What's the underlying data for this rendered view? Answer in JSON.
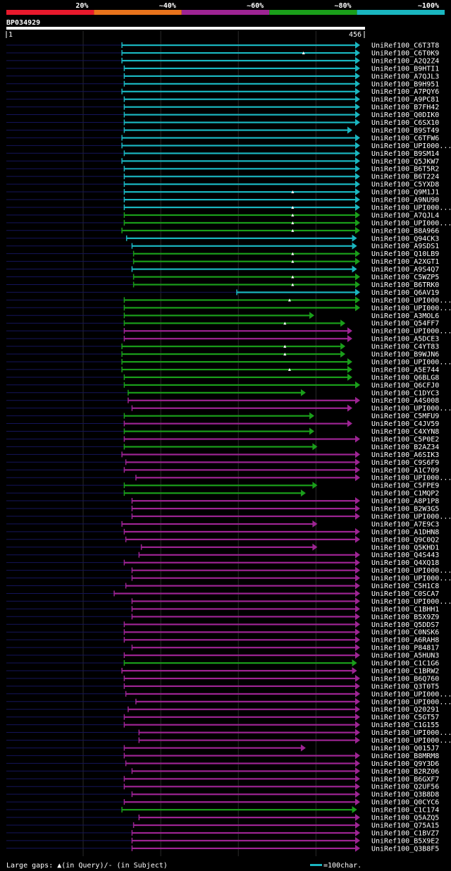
{
  "chart_data": {
    "type": "alignment",
    "title": "BP034929",
    "query_length": 456,
    "axis_start_label": "1",
    "axis_end_label": "456",
    "identity_bins": [
      {
        "label": "20%",
        "color": "#e8192c"
      },
      {
        "label": "~40%",
        "color": "#e8731c"
      },
      {
        "label": "~60%",
        "color": "#9d2493"
      },
      {
        "label": "~80%",
        "color": "#1a9e1a"
      },
      {
        "label": "~100%",
        "color": "#1ab6c0"
      }
    ],
    "hits": [
      {
        "name": "UniRef100_C6T3T8",
        "start": 150,
        "end": 456,
        "bin": 4,
        "gaps": []
      },
      {
        "name": "UniRef100_C6T0K9",
        "start": 150,
        "end": 456,
        "bin": 4,
        "gaps": [
          384
        ]
      },
      {
        "name": "UniRef100_A2Q2Z4",
        "start": 150,
        "end": 456,
        "bin": 4,
        "gaps": []
      },
      {
        "name": "UniRef100_B9HTI1",
        "start": 153,
        "end": 456,
        "bin": 4,
        "gaps": []
      },
      {
        "name": "UniRef100_A7QJL3",
        "start": 153,
        "end": 456,
        "bin": 4,
        "gaps": []
      },
      {
        "name": "UniRef100_B9H951",
        "start": 153,
        "end": 456,
        "bin": 4,
        "gaps": []
      },
      {
        "name": "UniRef100_A7PQY6",
        "start": 150,
        "end": 456,
        "bin": 4,
        "gaps": []
      },
      {
        "name": "UniRef100_A9PC81",
        "start": 153,
        "end": 456,
        "bin": 4,
        "gaps": []
      },
      {
        "name": "UniRef100_B7FH42",
        "start": 153,
        "end": 456,
        "bin": 4,
        "gaps": []
      },
      {
        "name": "UniRef100_Q0DIK0",
        "start": 153,
        "end": 456,
        "bin": 4,
        "gaps": []
      },
      {
        "name": "UniRef100_C6SX10",
        "start": 153,
        "end": 456,
        "bin": 4,
        "gaps": []
      },
      {
        "name": "UniRef100_B9ST49",
        "start": 153,
        "end": 446,
        "bin": 4,
        "gaps": []
      },
      {
        "name": "UniRef100_C6TFW6",
        "start": 150,
        "end": 456,
        "bin": 4,
        "gaps": []
      },
      {
        "name": "UniRef100_UPI000...",
        "start": 150,
        "end": 456,
        "bin": 4,
        "gaps": []
      },
      {
        "name": "UniRef100_B9SM14",
        "start": 153,
        "end": 456,
        "bin": 4,
        "gaps": []
      },
      {
        "name": "UniRef100_Q5JKW7",
        "start": 150,
        "end": 456,
        "bin": 4,
        "gaps": []
      },
      {
        "name": "UniRef100_B6T5R2",
        "start": 153,
        "end": 456,
        "bin": 4,
        "gaps": []
      },
      {
        "name": "UniRef100_B6T224",
        "start": 153,
        "end": 456,
        "bin": 4,
        "gaps": []
      },
      {
        "name": "UniRef100_C5YXD8",
        "start": 153,
        "end": 456,
        "bin": 4,
        "gaps": []
      },
      {
        "name": "UniRef100_Q9M1J1",
        "start": 153,
        "end": 456,
        "bin": 4,
        "gaps": [
          370
        ]
      },
      {
        "name": "UniRef100_A9NU90",
        "start": 153,
        "end": 456,
        "bin": 4,
        "gaps": []
      },
      {
        "name": "UniRef100_UPI000...",
        "start": 153,
        "end": 456,
        "bin": 4,
        "gaps": [
          370
        ]
      },
      {
        "name": "UniRef100_A7QJL4",
        "start": 153,
        "end": 456,
        "bin": 3,
        "gaps": [
          370
        ]
      },
      {
        "name": "UniRef100_UPI000...",
        "start": 153,
        "end": 456,
        "bin": 3,
        "gaps": [
          370
        ]
      },
      {
        "name": "UniRef100_B8A966",
        "start": 150,
        "end": 456,
        "bin": 3,
        "gaps": [
          370
        ]
      },
      {
        "name": "UniRef100_Q94CK3",
        "start": 156,
        "end": 452,
        "bin": 4,
        "gaps": []
      },
      {
        "name": "UniRef100_A9SDS1",
        "start": 163,
        "end": 452,
        "bin": 4,
        "gaps": []
      },
      {
        "name": "UniRef100_Q10LB9",
        "start": 165,
        "end": 456,
        "bin": 3,
        "gaps": [
          370
        ]
      },
      {
        "name": "UniRef100_A2XGT1",
        "start": 165,
        "end": 456,
        "bin": 3,
        "gaps": [
          370
        ]
      },
      {
        "name": "UniRef100_A9S4Q7",
        "start": 163,
        "end": 452,
        "bin": 4,
        "gaps": []
      },
      {
        "name": "UniRef100_C5WZP5",
        "start": 165,
        "end": 456,
        "bin": 3,
        "gaps": [
          370
        ]
      },
      {
        "name": "UniRef100_B6TRK0",
        "start": 165,
        "end": 456,
        "bin": 3,
        "gaps": [
          370
        ]
      },
      {
        "name": "UniRef100_Q6AV19",
        "start": 298,
        "end": 456,
        "bin": 4,
        "gaps": []
      },
      {
        "name": "UniRef100_UPI000...",
        "start": 153,
        "end": 456,
        "bin": 3,
        "gaps": [
          366
        ]
      },
      {
        "name": "UniRef100_UPI000...",
        "start": 153,
        "end": 456,
        "bin": 3,
        "gaps": []
      },
      {
        "name": "UniRef100_A3MOL6",
        "start": 153,
        "end": 397,
        "bin": 3,
        "gaps": []
      },
      {
        "name": "UniRef100_Q54FF7",
        "start": 153,
        "end": 437,
        "bin": 3,
        "gaps": [
          360
        ]
      },
      {
        "name": "UniRef100_UPI000...",
        "start": 153,
        "end": 446,
        "bin": 2,
        "gaps": []
      },
      {
        "name": "UniRef100_A5DCE3",
        "start": 153,
        "end": 446,
        "bin": 2,
        "gaps": []
      },
      {
        "name": "UniRef100_C4YT83",
        "start": 150,
        "end": 437,
        "bin": 3,
        "gaps": [
          360
        ]
      },
      {
        "name": "UniRef100_B9WJN6",
        "start": 150,
        "end": 437,
        "bin": 3,
        "gaps": [
          360
        ]
      },
      {
        "name": "UniRef100_UPI000...",
        "start": 150,
        "end": 446,
        "bin": 3,
        "gaps": []
      },
      {
        "name": "UniRef100_A5E744",
        "start": 150,
        "end": 446,
        "bin": 3,
        "gaps": [
          366
        ]
      },
      {
        "name": "UniRef100_Q6BLG8",
        "start": 153,
        "end": 446,
        "bin": 3,
        "gaps": []
      },
      {
        "name": "UniRef100_Q6CFJ0",
        "start": 153,
        "end": 456,
        "bin": 3,
        "gaps": []
      },
      {
        "name": "UniRef100_C1DYC3",
        "start": 158,
        "end": 386,
        "bin": 3,
        "gaps": []
      },
      {
        "name": "UniRef100_A4S008",
        "start": 158,
        "end": 456,
        "bin": 2,
        "gaps": []
      },
      {
        "name": "UniRef100_UPI000...",
        "start": 163,
        "end": 446,
        "bin": 2,
        "gaps": []
      },
      {
        "name": "UniRef100_C5MFU9",
        "start": 153,
        "end": 397,
        "bin": 3,
        "gaps": []
      },
      {
        "name": "UniRef100_C4JV59",
        "start": 153,
        "end": 446,
        "bin": 2,
        "gaps": []
      },
      {
        "name": "UniRef100_C4XYN8",
        "start": 153,
        "end": 397,
        "bin": 3,
        "gaps": []
      },
      {
        "name": "UniRef100_C5P0E2",
        "start": 153,
        "end": 456,
        "bin": 2,
        "gaps": []
      },
      {
        "name": "UniRef100_B2AZ34",
        "start": 153,
        "end": 401,
        "bin": 3,
        "gaps": []
      },
      {
        "name": "UniRef100_A6SIK3",
        "start": 150,
        "end": 456,
        "bin": 2,
        "gaps": []
      },
      {
        "name": "UniRef100_C9S6F9",
        "start": 155,
        "end": 456,
        "bin": 2,
        "gaps": []
      },
      {
        "name": "UniRef100_A1C709",
        "start": 153,
        "end": 456,
        "bin": 2,
        "gaps": []
      },
      {
        "name": "UniRef100_UPI000...",
        "start": 168,
        "end": 456,
        "bin": 2,
        "gaps": []
      },
      {
        "name": "UniRef100_C5FPE9",
        "start": 153,
        "end": 401,
        "bin": 3,
        "gaps": []
      },
      {
        "name": "UniRef100_C1MQP2",
        "start": 153,
        "end": 386,
        "bin": 3,
        "gaps": []
      },
      {
        "name": "UniRef100_A8P1P8",
        "start": 163,
        "end": 456,
        "bin": 2,
        "gaps": []
      },
      {
        "name": "UniRef100_B2W3G5",
        "start": 163,
        "end": 456,
        "bin": 2,
        "gaps": []
      },
      {
        "name": "UniRef100_UPI000...",
        "start": 163,
        "end": 456,
        "bin": 2,
        "gaps": []
      },
      {
        "name": "UniRef100_A7E9C3",
        "start": 150,
        "end": 401,
        "bin": 2,
        "gaps": []
      },
      {
        "name": "UniRef100_A1DHN8",
        "start": 153,
        "end": 456,
        "bin": 2,
        "gaps": []
      },
      {
        "name": "UniRef100_Q9C0Q2",
        "start": 155,
        "end": 456,
        "bin": 2,
        "gaps": []
      },
      {
        "name": "UniRef100_Q5KHD1",
        "start": 175,
        "end": 401,
        "bin": 2,
        "gaps": []
      },
      {
        "name": "UniRef100_Q4S443",
        "start": 172,
        "end": 456,
        "bin": 2,
        "gaps": []
      },
      {
        "name": "UniRef100_Q4XQ18",
        "start": 153,
        "end": 456,
        "bin": 2,
        "gaps": []
      },
      {
        "name": "UniRef100_UPI000...",
        "start": 163,
        "end": 456,
        "bin": 2,
        "gaps": []
      },
      {
        "name": "UniRef100_UPI000...",
        "start": 163,
        "end": 456,
        "bin": 2,
        "gaps": []
      },
      {
        "name": "UniRef100_C5H1C8",
        "start": 155,
        "end": 456,
        "bin": 2,
        "gaps": []
      },
      {
        "name": "UniRef100_C0SCA7",
        "start": 140,
        "end": 456,
        "bin": 2,
        "gaps": []
      },
      {
        "name": "UniRef100_UPI000...",
        "start": 163,
        "end": 456,
        "bin": 2,
        "gaps": []
      },
      {
        "name": "UniRef100_C1BHH1",
        "start": 163,
        "end": 456,
        "bin": 2,
        "gaps": []
      },
      {
        "name": "UniRef100_B5X9Z9",
        "start": 163,
        "end": 456,
        "bin": 2,
        "gaps": []
      },
      {
        "name": "UniRef100_Q5DDS7",
        "start": 153,
        "end": 456,
        "bin": 2,
        "gaps": []
      },
      {
        "name": "UniRef100_C0NSK6",
        "start": 153,
        "end": 456,
        "bin": 2,
        "gaps": []
      },
      {
        "name": "UniRef100_A6RAH8",
        "start": 153,
        "end": 456,
        "bin": 2,
        "gaps": []
      },
      {
        "name": "UniRef100_P84817",
        "start": 163,
        "end": 456,
        "bin": 2,
        "gaps": []
      },
      {
        "name": "UniRef100_A5HUN3",
        "start": 153,
        "end": 456,
        "bin": 2,
        "gaps": []
      },
      {
        "name": "UniRef100_C1C1G6",
        "start": 153,
        "end": 452,
        "bin": 3,
        "gaps": []
      },
      {
        "name": "UniRef100_C1BRW2",
        "start": 150,
        "end": 452,
        "bin": 2,
        "gaps": []
      },
      {
        "name": "UniRef100_B6Q760",
        "start": 153,
        "end": 456,
        "bin": 2,
        "gaps": []
      },
      {
        "name": "UniRef100_Q3T0T5",
        "start": 153,
        "end": 456,
        "bin": 2,
        "gaps": []
      },
      {
        "name": "UniRef100_UPI000...",
        "start": 155,
        "end": 456,
        "bin": 2,
        "gaps": []
      },
      {
        "name": "UniRef100_UPI000...",
        "start": 168,
        "end": 456,
        "bin": 2,
        "gaps": []
      },
      {
        "name": "UniRef100_Q20291",
        "start": 158,
        "end": 456,
        "bin": 2,
        "gaps": []
      },
      {
        "name": "UniRef100_C5GT57",
        "start": 153,
        "end": 456,
        "bin": 2,
        "gaps": []
      },
      {
        "name": "UniRef100_C1G155",
        "start": 153,
        "end": 456,
        "bin": 2,
        "gaps": []
      },
      {
        "name": "UniRef100_UPI000...",
        "start": 172,
        "end": 456,
        "bin": 2,
        "gaps": []
      },
      {
        "name": "UniRef100_UPI000...",
        "start": 172,
        "end": 456,
        "bin": 2,
        "gaps": []
      },
      {
        "name": "UniRef100_Q015J7",
        "start": 153,
        "end": 386,
        "bin": 2,
        "gaps": []
      },
      {
        "name": "UniRef100_B8MRM8",
        "start": 153,
        "end": 456,
        "bin": 2,
        "gaps": []
      },
      {
        "name": "UniRef100_Q9Y3D6",
        "start": 155,
        "end": 456,
        "bin": 2,
        "gaps": []
      },
      {
        "name": "UniRef100_B2RZ06",
        "start": 163,
        "end": 456,
        "bin": 2,
        "gaps": []
      },
      {
        "name": "UniRef100_B6GXF7",
        "start": 153,
        "end": 456,
        "bin": 2,
        "gaps": []
      },
      {
        "name": "UniRef100_Q2UF56",
        "start": 153,
        "end": 456,
        "bin": 2,
        "gaps": []
      },
      {
        "name": "UniRef100_Q3B8D8",
        "start": 163,
        "end": 456,
        "bin": 2,
        "gaps": []
      },
      {
        "name": "UniRef100_Q0CYC6",
        "start": 153,
        "end": 456,
        "bin": 2,
        "gaps": []
      },
      {
        "name": "UniRef100_C1C174",
        "start": 150,
        "end": 452,
        "bin": 3,
        "gaps": []
      },
      {
        "name": "UniRef100_Q5AZQ5",
        "start": 172,
        "end": 456,
        "bin": 2,
        "gaps": []
      },
      {
        "name": "UniRef100_Q75A15",
        "start": 165,
        "end": 456,
        "bin": 2,
        "gaps": []
      },
      {
        "name": "UniRef100_C1BVZ7",
        "start": 163,
        "end": 456,
        "bin": 2,
        "gaps": []
      },
      {
        "name": "UniRef100_B5X9E2",
        "start": 163,
        "end": 456,
        "bin": 2,
        "gaps": []
      },
      {
        "name": "UniRef100_Q3B8F5",
        "start": 163,
        "end": 456,
        "bin": 2,
        "gaps": []
      }
    ],
    "legend_gaps": "Large gaps: ▲(in Query)/- (in Subject)",
    "legend_scale": "=100char.",
    "scale_color": "#1ab6c0"
  }
}
